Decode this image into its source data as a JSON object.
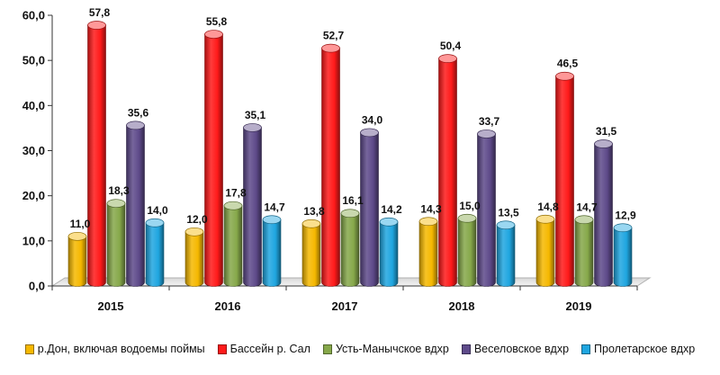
{
  "chart_data": {
    "type": "bar",
    "categories": [
      "2015",
      "2016",
      "2017",
      "2018",
      "2019"
    ],
    "series": [
      {
        "name": "р.Дон, включая водоемы поймы",
        "color": "#F5B800",
        "values": [
          11.0,
          12.0,
          13.8,
          14.3,
          14.8
        ],
        "labels": [
          "11,0",
          "12,0",
          "13,8",
          "14,3",
          "14,8"
        ]
      },
      {
        "name": "Бассейн р. Сал",
        "color": "#FF1A1A",
        "values": [
          57.8,
          55.8,
          52.7,
          50.4,
          46.5
        ],
        "labels": [
          "57,8",
          "55,8",
          "52,7",
          "50,4",
          "46,5"
        ]
      },
      {
        "name": "Усть-Манычское вдхр",
        "color": "#86A84A",
        "values": [
          18.3,
          17.8,
          16.1,
          15.0,
          14.7
        ],
        "labels": [
          "18,3",
          "17,8",
          "16,1",
          "15,0",
          "14,7"
        ]
      },
      {
        "name": "Веселовское вдхр",
        "color": "#5E4A8A",
        "values": [
          35.6,
          35.1,
          34.0,
          33.7,
          31.5
        ],
        "labels": [
          "35,6",
          "35,1",
          "34,0",
          "33,7",
          "31,5"
        ]
      },
      {
        "name": "Пролетарское вдхр",
        "color": "#1FA6E0",
        "values": [
          14.0,
          14.7,
          14.2,
          13.5,
          12.9
        ],
        "labels": [
          "14,0",
          "14,7",
          "14,2",
          "13,5",
          "12,9"
        ]
      }
    ],
    "yticks": [
      "0,0",
      "10,0",
      "20,0",
      "30,0",
      "40,0",
      "50,0",
      "60,0"
    ],
    "ylim": [
      0,
      60
    ],
    "grid": false,
    "legend_position": "bottom",
    "style": "3d-cylinder"
  }
}
